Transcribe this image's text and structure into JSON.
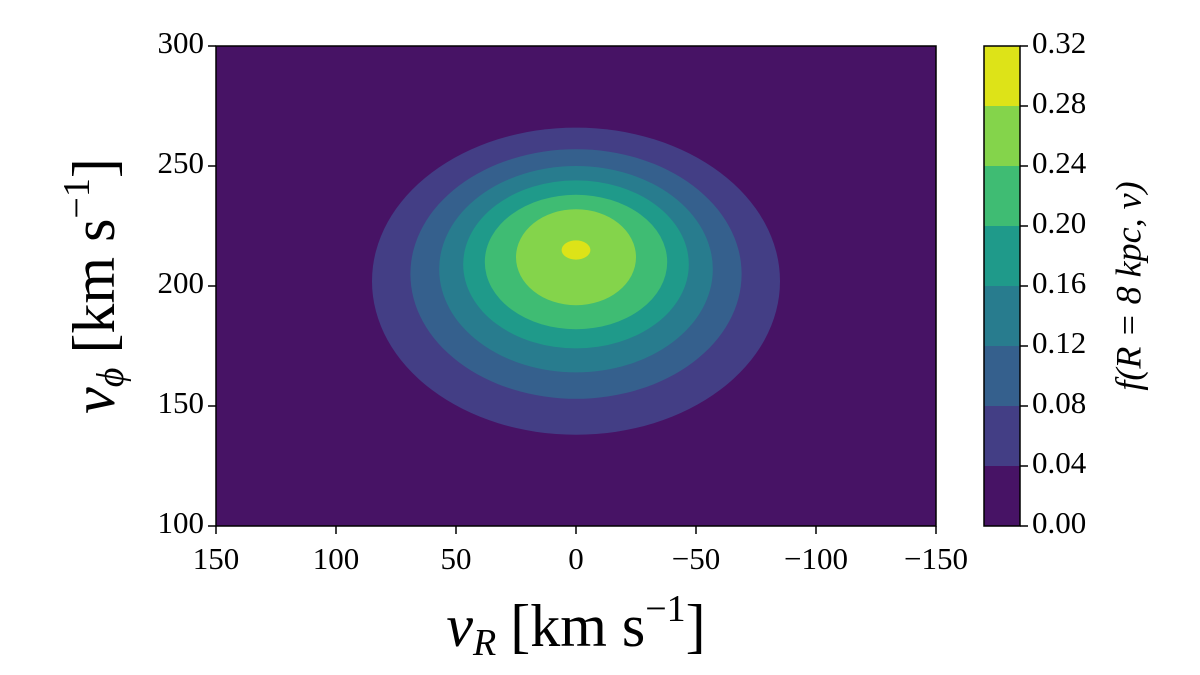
{
  "chart_data": {
    "type": "contour",
    "xlabel": {
      "symbol": "v",
      "sub": "R",
      "unit": "[km s",
      "sup": "−1",
      "close": "]"
    },
    "ylabel": {
      "symbol": "v",
      "sub": "ϕ",
      "unit": "[km s",
      "sup": "−1",
      "close": "]"
    },
    "colorbar_label": "f(R = 8 kpc, v)",
    "xlim": [
      150,
      -150
    ],
    "xticks": [
      150,
      100,
      50,
      0,
      {
        "value": -50,
        "label": "−50"
      },
      {
        "value": -100,
        "label": "−100"
      },
      {
        "value": -150,
        "label": "−150"
      }
    ],
    "ylim": [
      100,
      300
    ],
    "yticks": [
      100,
      150,
      200,
      250,
      300
    ],
    "levels": [
      {
        "value": 0,
        "label": "0.00"
      },
      0.04,
      0.08,
      0.12,
      0.16,
      {
        "value": 0.2,
        "label": "0.20"
      },
      0.24,
      0.28,
      0.32
    ],
    "colors": [
      "#471365",
      "#433e85",
      "#35608d",
      "#287c8e",
      "#1f9a8a",
      "#3fbc73",
      "#84d44b",
      "#dde318"
    ],
    "contours": [
      {
        "level": 0.04,
        "center": [
          0,
          202
        ],
        "half_width": [
          85,
          64
        ]
      },
      {
        "level": 0.08,
        "center": [
          0,
          205
        ],
        "half_width": [
          69,
          52
        ]
      },
      {
        "level": 0.12,
        "center": [
          0,
          207
        ],
        "half_width": [
          57,
          43
        ]
      },
      {
        "level": 0.16,
        "center": [
          0,
          209
        ],
        "half_width": [
          47,
          35
        ]
      },
      {
        "level": 0.2,
        "center": [
          0,
          210
        ],
        "half_width": [
          38,
          28
        ]
      },
      {
        "level": 0.24,
        "center": [
          0,
          212
        ],
        "half_width": [
          25,
          20
        ]
      },
      {
        "level": 0.28,
        "center": [
          0,
          215
        ],
        "half_width": [
          6,
          4
        ]
      }
    ]
  }
}
